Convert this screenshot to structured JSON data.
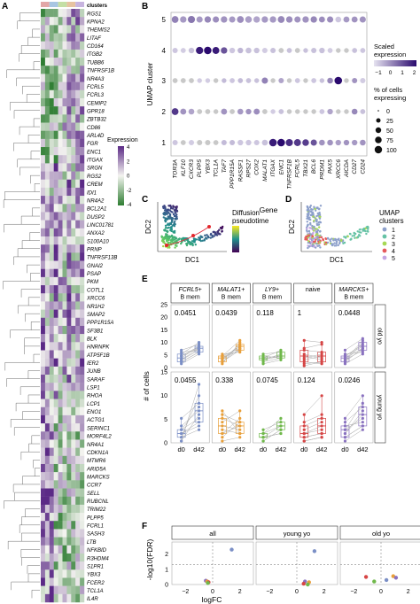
{
  "panel_letters": {
    "a": "A",
    "b": "B",
    "c": "C",
    "d": "D",
    "e": "E",
    "f": "F"
  },
  "heatmap": {
    "annotation_label": "clusters",
    "genes": [
      "RGS1",
      "KPNA2",
      "THEMIS2",
      "LITAF",
      "CD164",
      "ITGB2",
      "TUBB6",
      "TNFRSF1B",
      "NR4A3",
      "FCRL5",
      "FCRL3",
      "CEMIP2",
      "GPR18",
      "ZBTB32",
      "CD86",
      "ARL4D",
      "FGR",
      "ENC1",
      "ITGAX",
      "SRGN",
      "RGS2",
      "CREM",
      "IDI1",
      "NR4A2",
      "BCL2A1",
      "DUSP2",
      "LINC01781",
      "ANXA2",
      "S100A10",
      "PRNP",
      "TNFRSF13B",
      "GNAI2",
      "PSAP",
      "PKM",
      "COTL1",
      "XRCC6",
      "NR1H2",
      "SMAP2",
      "PPP1R15A",
      "SF3B1",
      "BLK",
      "HNRNPK",
      "ATP5F1B",
      "IER2",
      "JUNB",
      "SARAF",
      "LSP1",
      "RHOA",
      "LCP1",
      "ENO1",
      "ACTG1",
      "SERINC1",
      "MORF4L2",
      "NR4A1",
      "CDKN1A",
      "MTMR6",
      "ARID5A",
      "MARCKS",
      "CCR7",
      "SELL",
      "RUBCNL",
      "TRIM22",
      "PLPP5",
      "FCRL1",
      "SASH3",
      "LTB",
      "NFKBID",
      "R3HDM4",
      "S1PR1",
      "YBX3",
      "FCER2",
      "TCL1A",
      "IL4R"
    ],
    "legend_title": "Expression",
    "legend_ticks": [
      "4",
      "2",
      "0",
      "-2",
      "-4"
    ],
    "cluster_colors": [
      "#e2a7a7",
      "#a8c6e2",
      "#c4dfa5",
      "#e6c3a1",
      "#c7b4df"
    ]
  },
  "chart_data": [
    {
      "type": "scatter",
      "title": "B",
      "xlabel": "Gene",
      "ylabel": "UMAP cluster",
      "genes": [
        "TOR3A",
        "KLF10",
        "CXCR3",
        "PLPP5",
        "YBX3",
        "TCL1A",
        "TAF7",
        "PPP1R15A",
        "RASSF1",
        "RPS27",
        "COX2",
        "MALAT1",
        "ITGAX",
        "ENC1",
        "TNFRSF1B",
        "FCRL5",
        "TBX21",
        "BCL6",
        "PRDM1",
        "PAX5",
        "XRCC6",
        "AICDA",
        "CD27",
        "CD24"
      ],
      "clusters": [
        "5",
        "4",
        "3",
        "2",
        "1"
      ],
      "dots": {
        "5": [
          [
            0.7,
            70
          ],
          [
            0.3,
            60
          ],
          [
            0.9,
            80
          ],
          [
            0.3,
            55
          ],
          [
            0.6,
            60
          ],
          [
            0.5,
            55
          ],
          [
            0.4,
            60
          ],
          [
            0.3,
            55
          ],
          [
            0.5,
            70
          ],
          [
            0.2,
            65
          ],
          [
            0.1,
            60
          ],
          [
            0.3,
            60
          ],
          [
            0.3,
            60
          ],
          [
            0.6,
            70
          ],
          [
            0.5,
            60
          ],
          [
            0.4,
            55
          ],
          [
            0.4,
            60
          ],
          [
            0.6,
            60
          ],
          [
            0.5,
            50
          ],
          [
            0.5,
            55
          ],
          [
            -0.5,
            45
          ],
          [
            0.3,
            50
          ],
          [
            0.4,
            50
          ],
          [
            0.4,
            55
          ]
        ],
        "4": [
          [
            -0.5,
            35
          ],
          [
            -0.6,
            30
          ],
          [
            -0.4,
            40
          ],
          [
            2.5,
            85
          ],
          [
            2.8,
            90
          ],
          [
            2.5,
            75
          ],
          [
            1.5,
            60
          ],
          [
            -0.5,
            40
          ],
          [
            -0.2,
            40
          ],
          [
            -0.4,
            45
          ],
          [
            -0.4,
            40
          ],
          [
            -0.6,
            35
          ],
          [
            -0.4,
            35
          ],
          [
            -0.8,
            30
          ],
          [
            -0.4,
            30
          ],
          [
            -0.9,
            30
          ],
          [
            -0.4,
            25
          ],
          [
            -0.4,
            35
          ],
          [
            -0.4,
            40
          ],
          [
            -0.6,
            30
          ],
          [
            -0.9,
            25
          ],
          [
            -0.7,
            25
          ],
          [
            -0.4,
            30
          ],
          [
            -0.5,
            30
          ]
        ],
        "3": [
          [
            -0.8,
            30
          ],
          [
            -0.9,
            30
          ],
          [
            -0.9,
            30
          ],
          [
            -0.6,
            25
          ],
          [
            -0.6,
            25
          ],
          [
            -0.9,
            25
          ],
          [
            -0.3,
            25
          ],
          [
            -0.5,
            30
          ],
          [
            -0.3,
            30
          ],
          [
            -0.4,
            30
          ],
          [
            -0.4,
            25
          ],
          [
            0.7,
            55
          ],
          [
            -0.8,
            25
          ],
          [
            0.1,
            35
          ],
          [
            -0.7,
            25
          ],
          [
            -0.5,
            30
          ],
          [
            -0.9,
            25
          ],
          [
            -0.5,
            30
          ],
          [
            -0.4,
            25
          ],
          [
            0.6,
            45
          ],
          [
            2.8,
            95
          ],
          [
            -0.8,
            25
          ],
          [
            0.4,
            35
          ],
          [
            -0.6,
            35
          ]
        ],
        "2": [
          [
            2.0,
            70
          ],
          [
            0.4,
            50
          ],
          [
            0.1,
            45
          ],
          [
            -0.9,
            30
          ],
          [
            -0.9,
            30
          ],
          [
            -0.9,
            25
          ],
          [
            0.4,
            50
          ],
          [
            -0.8,
            30
          ],
          [
            0.3,
            45
          ],
          [
            0.4,
            40
          ],
          [
            0.5,
            50
          ],
          [
            -0.8,
            30
          ],
          [
            -0.6,
            25
          ],
          [
            -0.4,
            30
          ],
          [
            -0.9,
            25
          ],
          [
            -0.8,
            25
          ],
          [
            -0.9,
            25
          ],
          [
            -0.9,
            25
          ],
          [
            -0.5,
            30
          ],
          [
            0.1,
            40
          ],
          [
            -0.9,
            25
          ],
          [
            -0.8,
            25
          ],
          [
            0.6,
            45
          ],
          [
            -0.4,
            30
          ]
        ],
        "1": [
          [
            -0.5,
            35
          ],
          [
            -0.7,
            30
          ],
          [
            -0.6,
            35
          ],
          [
            -0.8,
            35
          ],
          [
            -0.8,
            35
          ],
          [
            -0.8,
            30
          ],
          [
            -0.3,
            35
          ],
          [
            -0.3,
            35
          ],
          [
            -0.5,
            40
          ],
          [
            -0.5,
            40
          ],
          [
            -0.5,
            35
          ],
          [
            -0.4,
            45
          ],
          [
            2.5,
            95
          ],
          [
            2.8,
            95
          ],
          [
            2.2,
            80
          ],
          [
            2.0,
            75
          ],
          [
            1.9,
            65
          ],
          [
            1.5,
            55
          ],
          [
            0.4,
            45
          ],
          [
            0.4,
            45
          ],
          [
            0.2,
            40
          ],
          [
            0.4,
            40
          ],
          [
            0.3,
            40
          ],
          [
            0.4,
            45
          ]
        ]
      },
      "color_legend_title": "Scaled expression",
      "color_ticks": [
        "−1",
        "0",
        "1",
        "2"
      ],
      "size_legend_title": "% of cells expressing",
      "size_ticks": [
        "0",
        "25",
        "50",
        "75",
        "100"
      ]
    },
    {
      "type": "scatter",
      "title": "C",
      "xlabel": "DC1",
      "ylabel": "DC2",
      "legend_title": "Diffusion pseudotime"
    },
    {
      "type": "scatter",
      "title": "D",
      "xlabel": "DC1",
      "ylabel": "DC2",
      "legend_title": "UMAP clusters",
      "series": [
        {
          "name": "1",
          "color": "#8da0cb"
        },
        {
          "name": "2",
          "color": "#66c2a5"
        },
        {
          "name": "3",
          "color": "#a6d854"
        },
        {
          "name": "4",
          "color": "#e5595b"
        },
        {
          "name": "5",
          "color": "#c4a5e2"
        }
      ]
    },
    {
      "type": "line",
      "title": "E",
      "ylabel": "# of cells",
      "categories": [
        "d0",
        "d42"
      ],
      "ylim_old": [
        0,
        25
      ],
      "ylim_young": [
        0,
        15
      ],
      "yticks_old": [
        "0",
        "5",
        "10",
        "15",
        "20",
        "25"
      ],
      "yticks_young": [
        "0",
        "5",
        "10",
        "15"
      ],
      "facets": [
        {
          "label": "FCRL5+\nB mem",
          "color": "#7b8fc6",
          "p_old": "0.0451",
          "p_young": "0.0455",
          "old_d0": [
            3,
            5,
            2,
            4,
            6,
            3,
            8,
            1,
            5,
            7,
            2
          ],
          "old_d42": [
            8,
            9,
            7,
            10,
            12,
            9,
            11,
            6,
            10,
            8,
            7
          ],
          "young_d0": [
            1,
            3,
            2,
            0,
            4,
            2,
            6,
            1,
            3,
            0
          ],
          "young_d42": [
            12,
            9,
            5,
            7,
            8,
            4,
            10,
            3,
            6,
            15
          ]
        },
        {
          "label": "MALAT1+\nB mem",
          "color": "#e89f3a",
          "p_old": "0.0439",
          "p_young": "0.338",
          "old_d0": [
            2,
            4,
            1,
            5,
            3,
            6,
            2,
            4,
            3,
            5
          ],
          "old_d42": [
            8,
            10,
            12,
            9,
            11,
            7,
            9,
            8,
            10,
            13
          ],
          "young_d0": [
            3,
            6,
            1,
            4,
            2,
            8,
            5,
            2,
            0,
            7
          ],
          "young_d42": [
            2,
            4,
            5,
            3,
            6,
            2,
            8,
            4,
            1,
            5
          ]
        },
        {
          "label": "LY9+\nB mem",
          "color": "#6fb84a",
          "p_old": "0.118",
          "p_young": "0.0745",
          "old_d0": [
            2,
            4,
            3,
            5,
            1,
            6,
            3,
            4
          ],
          "old_d42": [
            4,
            5,
            6,
            4,
            3,
            7,
            5,
            8
          ],
          "young_d0": [
            1,
            2,
            0,
            3,
            1,
            2,
            0,
            1
          ],
          "young_d42": [
            2,
            4,
            3,
            5,
            2,
            6,
            3,
            4
          ]
        },
        {
          "label": "naive",
          "color": "#d64545",
          "p_old": "1",
          "p_young": "0.124",
          "old_d0": [
            3,
            5,
            9,
            1,
            6,
            2,
            8,
            4,
            13,
            0
          ],
          "old_d42": [
            5,
            3,
            11,
            2,
            4,
            1,
            7,
            6,
            12,
            2
          ],
          "young_d0": [
            1,
            3,
            0,
            5,
            2,
            7,
            4,
            1,
            2,
            0
          ],
          "young_d42": [
            2,
            5,
            1,
            7,
            3,
            12,
            6,
            2,
            4,
            1
          ]
        },
        {
          "label": "MARCKS+\nB mem",
          "color": "#8a72c0",
          "p_old": "0.0448",
          "p_young": "0.0246",
          "old_d0": [
            3,
            5,
            2,
            6,
            4,
            8,
            1,
            5,
            3,
            2
          ],
          "old_d42": [
            8,
            10,
            12,
            7,
            9,
            14,
            6,
            11,
            13,
            9
          ],
          "young_d0": [
            1,
            3,
            2,
            4,
            0,
            5,
            2,
            1,
            3,
            6
          ],
          "young_d42": [
            4,
            6,
            8,
            5,
            3,
            9,
            7,
            4,
            10,
            12
          ]
        }
      ],
      "strips_right": [
        "old yo",
        "young yo"
      ]
    },
    {
      "type": "scatter",
      "title": "F",
      "xlabel": "logFC",
      "ylabel": "-log10(FDR)",
      "xticks": [
        "−2",
        "0",
        "2"
      ],
      "yticks": [
        "0",
        "1",
        "2"
      ],
      "facets": [
        {
          "label": "all",
          "points": [
            [
              1.4,
              2.3,
              "#7b8fc6"
            ],
            [
              -0.5,
              0.25,
              "#8a72c0"
            ],
            [
              -0.4,
              0.2,
              "#e89f3a"
            ],
            [
              -0.3,
              0.15,
              "#d64545"
            ],
            [
              -0.35,
              0.1,
              "#6fb84a"
            ]
          ]
        },
        {
          "label": "young yo",
          "points": [
            [
              1.3,
              2.2,
              "#7b8fc6"
            ],
            [
              0.6,
              0.2,
              "#8a72c0"
            ],
            [
              0.9,
              0.15,
              "#e89f3a"
            ],
            [
              0.5,
              0.05,
              "#d64545"
            ],
            [
              0.8,
              0.0,
              "#6fb84a"
            ]
          ]
        },
        {
          "label": "old yo",
          "points": [
            [
              -1.1,
              0.5,
              "#d64545"
            ],
            [
              0.9,
              0.55,
              "#e89f3a"
            ],
            [
              1.1,
              0.45,
              "#8a72c0"
            ],
            [
              -0.5,
              0.2,
              "#6fb84a"
            ],
            [
              0.4,
              0.3,
              "#7b8fc6"
            ]
          ]
        }
      ]
    }
  ]
}
